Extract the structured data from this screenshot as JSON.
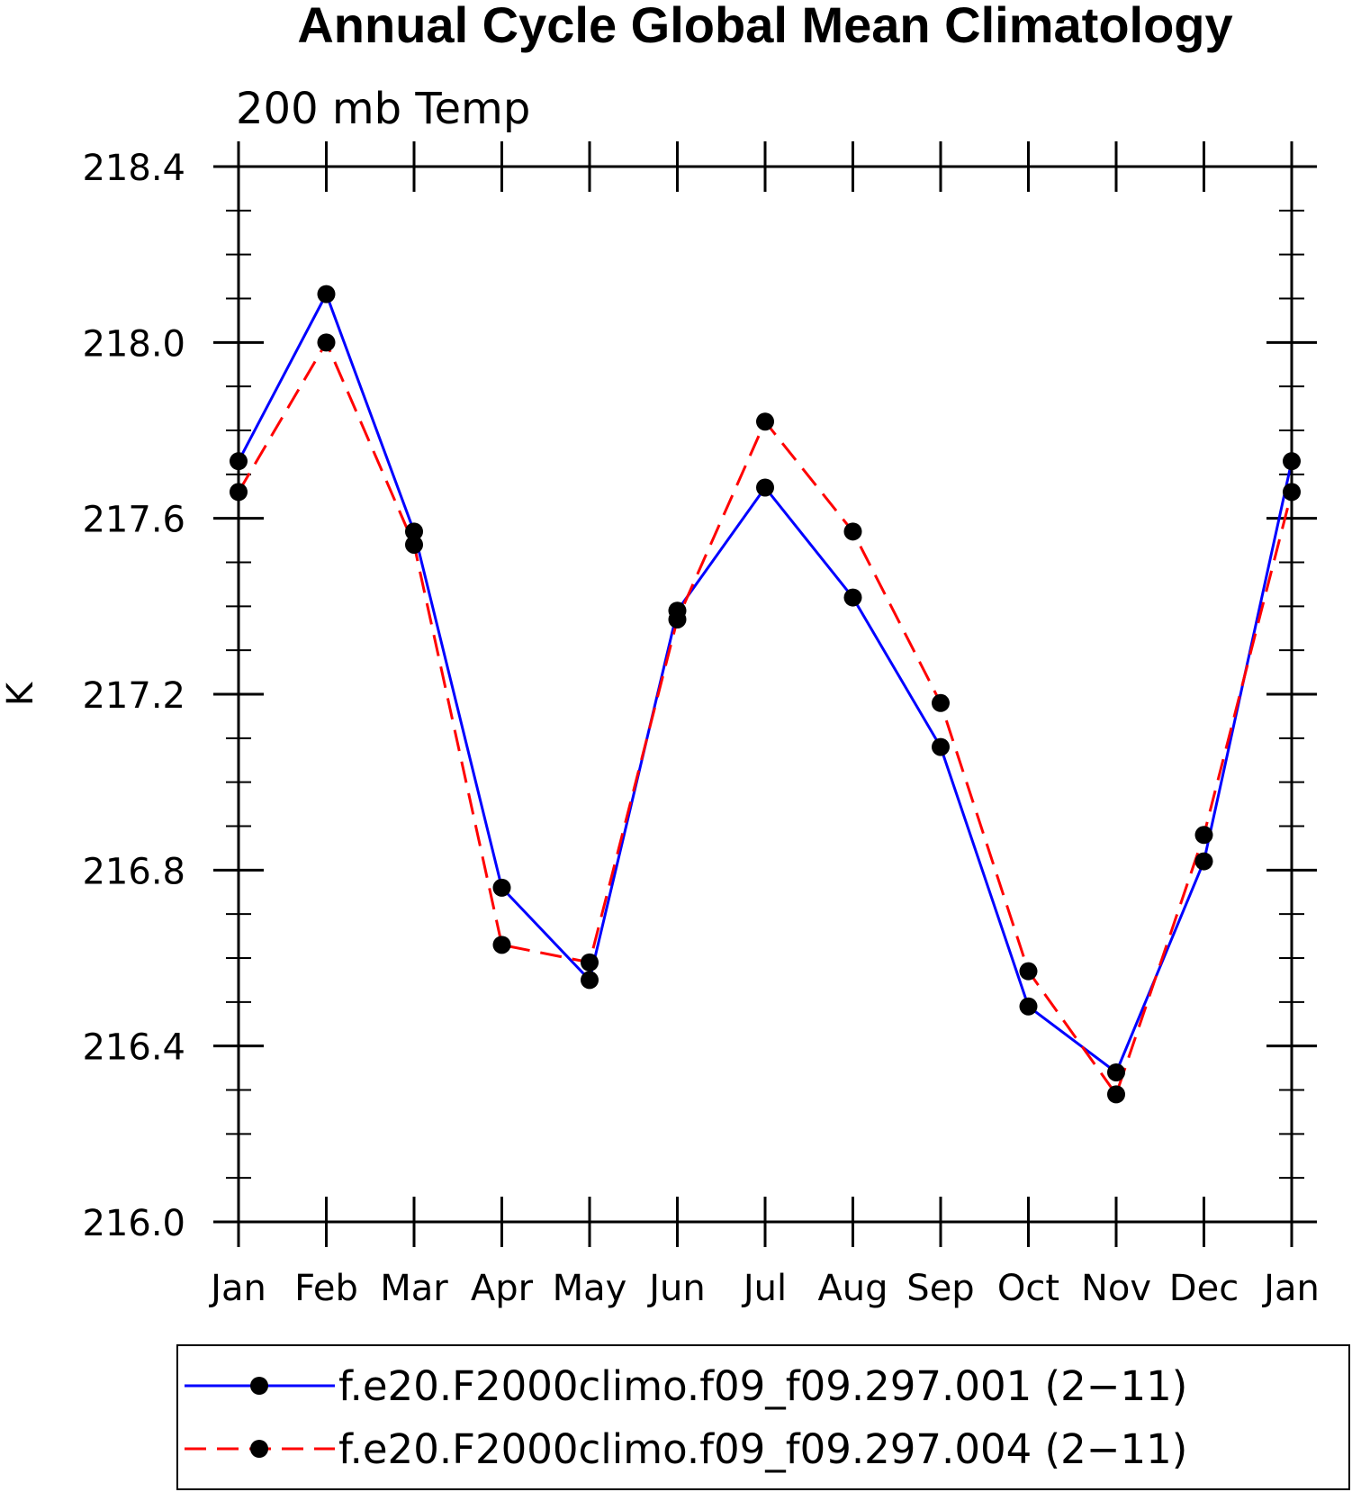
{
  "chart_data": {
    "type": "line",
    "title": "Annual Cycle Global Mean Climatology",
    "subtitle": "200 mb Temp",
    "xlabel": "",
    "ylabel": "K",
    "categories": [
      "Jan",
      "Feb",
      "Mar",
      "Apr",
      "May",
      "Jun",
      "Jul",
      "Aug",
      "Sep",
      "Oct",
      "Nov",
      "Dec",
      "Jan"
    ],
    "ylim": [
      216.0,
      218.4
    ],
    "yticks": [
      "216.0",
      "216.4",
      "216.8",
      "217.2",
      "217.6",
      "218.0",
      "218.4"
    ],
    "ytick_values": [
      216.0,
      216.4,
      216.8,
      217.2,
      217.6,
      218.0,
      218.4
    ],
    "grid": false,
    "legend_position": "bottom",
    "series": [
      {
        "name": "f.e20.F2000climo.f09_f09.297.001 (2−11)",
        "color": "#0000ff",
        "line_style": "solid",
        "marker": "filled-circle",
        "values": [
          217.73,
          218.11,
          217.57,
          216.76,
          216.55,
          217.39,
          217.67,
          217.42,
          217.08,
          216.49,
          216.34,
          216.82,
          217.73
        ]
      },
      {
        "name": "f.e20.F2000climo.f09_f09.297.004 (2−11)",
        "color": "#ff0000",
        "line_style": "dashed",
        "marker": "filled-circle",
        "values": [
          217.66,
          218.0,
          217.54,
          216.63,
          216.59,
          217.37,
          217.82,
          217.57,
          217.18,
          216.57,
          216.29,
          216.88,
          217.66
        ]
      }
    ]
  }
}
